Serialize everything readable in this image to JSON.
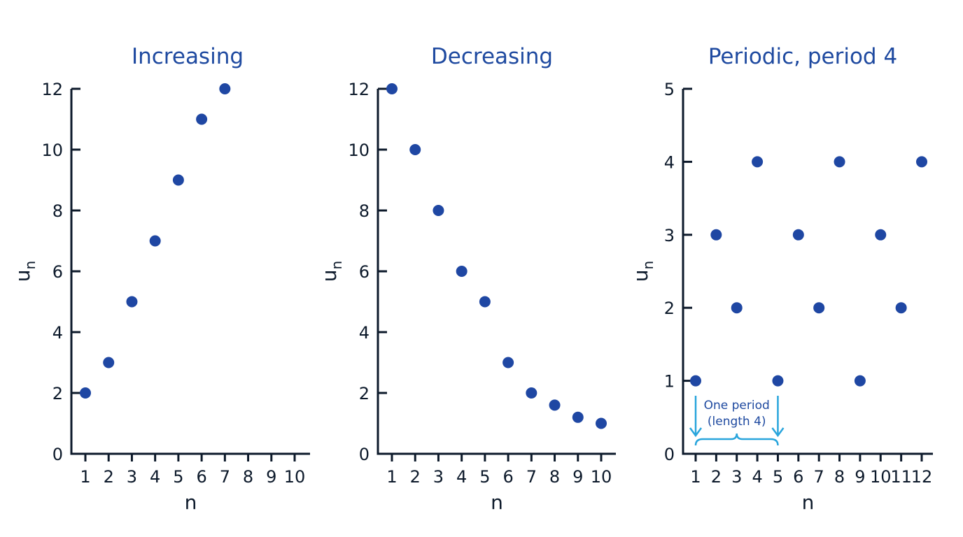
{
  "colors": {
    "point": "#1f47a3",
    "axis": "#0d1a2b",
    "title": "#1f4aa0",
    "annotation_line": "#29a5dc",
    "annotation_text": "#1f4aa0"
  },
  "chart_data": [
    {
      "type": "scatter",
      "title": "Increasing",
      "xlabel": "n",
      "ylabel": "u",
      "ylabel_sub": "n",
      "xlim": [
        1,
        10
      ],
      "ylim": [
        0,
        12
      ],
      "xticks": [
        "1",
        "2",
        "3",
        "4",
        "5",
        "6",
        "7",
        "8",
        "9",
        "10"
      ],
      "yticks": [
        "0",
        "2",
        "4",
        "6",
        "8",
        "10",
        "12"
      ],
      "ytick_values": [
        0,
        2,
        4,
        6,
        8,
        10,
        12
      ],
      "x": [
        1,
        2,
        3,
        4,
        5,
        6,
        7
      ],
      "y": [
        2,
        3,
        5,
        7,
        9,
        11,
        12
      ]
    },
    {
      "type": "scatter",
      "title": "Decreasing",
      "xlabel": "n",
      "ylabel": "u",
      "ylabel_sub": "n",
      "xlim": [
        1,
        10
      ],
      "ylim": [
        0,
        12
      ],
      "xticks": [
        "1",
        "2",
        "3",
        "4",
        "5",
        "6",
        "7",
        "8",
        "9",
        "10"
      ],
      "yticks": [
        "0",
        "2",
        "4",
        "6",
        "8",
        "10",
        "12"
      ],
      "ytick_values": [
        0,
        2,
        4,
        6,
        8,
        10,
        12
      ],
      "x": [
        1,
        2,
        3,
        4,
        5,
        6,
        7,
        8,
        9,
        10
      ],
      "y": [
        12,
        10,
        8,
        6,
        5,
        3,
        2,
        1.6,
        1.2,
        1
      ]
    },
    {
      "type": "scatter",
      "title": "Periodic, period 4",
      "xlabel": "n",
      "ylabel": "u",
      "ylabel_sub": "n",
      "xlim": [
        1,
        12
      ],
      "ylim": [
        0,
        5
      ],
      "xticks": [
        "1",
        "2",
        "3",
        "4",
        "5",
        "6",
        "7",
        "8",
        "9",
        "10",
        "11",
        "12"
      ],
      "yticks": [
        "0",
        "1",
        "2",
        "3",
        "4",
        "5"
      ],
      "ytick_values": [
        0,
        1,
        2,
        3,
        4,
        5
      ],
      "x": [
        1,
        2,
        3,
        4,
        5,
        6,
        7,
        8,
        9,
        10,
        11,
        12
      ],
      "y": [
        1,
        3,
        2,
        4,
        1,
        3,
        2,
        4,
        1,
        3,
        2,
        4
      ],
      "annotation": {
        "text_line1": "One period",
        "text_line2": "(length 4)",
        "x_start": 1,
        "x_end": 5
      }
    }
  ]
}
